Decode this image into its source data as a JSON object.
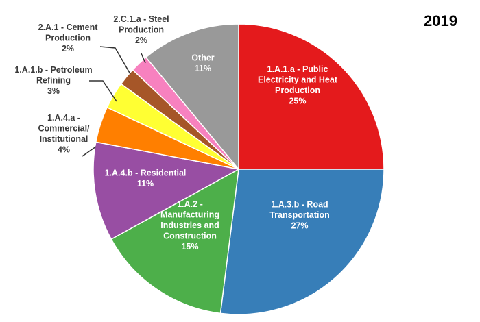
{
  "chart_data": {
    "type": "pie",
    "title": "2019",
    "slices": [
      {
        "label_lines": [
          "1.A.1.a - Public",
          "Electricity and Heat",
          "Production"
        ],
        "pct_label": "25%",
        "value": 25,
        "color": "#e41a1c",
        "text_color": "#ffffff",
        "inside": true
      },
      {
        "label_lines": [
          "1.A.3.b - Road",
          "Transportation"
        ],
        "pct_label": "27%",
        "value": 27,
        "color": "#377eb8",
        "text_color": "#ffffff",
        "inside": true
      },
      {
        "label_lines": [
          "1.A.2 -",
          "Manufacturing",
          "Industries and",
          "Construction"
        ],
        "pct_label": "15%",
        "value": 15,
        "color": "#4daf4a",
        "text_color": "#ffffff",
        "inside": true
      },
      {
        "label_lines": [
          "1.A.4.b - Residential"
        ],
        "pct_label": "11%",
        "value": 11,
        "color": "#984ea3",
        "text_color": "#ffffff",
        "inside": true
      },
      {
        "label_lines": [
          "1.A.4.a -",
          "Commercial/",
          "Institutional"
        ],
        "pct_label": "4%",
        "value": 4,
        "color": "#ff7f00",
        "text_color": "#3a3a3a",
        "inside": false
      },
      {
        "label_lines": [
          "1.A.1.b - Petroleum",
          "Refining"
        ],
        "pct_label": "3%",
        "value": 3,
        "color": "#ffff33",
        "text_color": "#3a3a3a",
        "inside": false
      },
      {
        "label_lines": [
          "2.A.1 - Cement",
          "Production"
        ],
        "pct_label": "2%",
        "value": 2,
        "color": "#a65628",
        "text_color": "#3a3a3a",
        "inside": false
      },
      {
        "label_lines": [
          "2.C.1.a - Steel",
          "Production"
        ],
        "pct_label": "2%",
        "value": 2,
        "color": "#f781bf",
        "text_color": "#3a3a3a",
        "inside": false
      },
      {
        "label_lines": [
          "Other"
        ],
        "pct_label": "11%",
        "value": 11,
        "color": "#999999",
        "text_color": "#ffffff",
        "inside": true
      }
    ],
    "legend": "none"
  }
}
